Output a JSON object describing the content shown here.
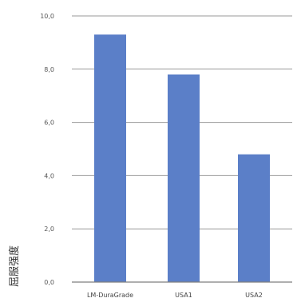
{
  "chart_data": {
    "type": "bar",
    "title": "",
    "xlabel": "",
    "ylabel": "屈服强度",
    "ylim": [
      0,
      10
    ],
    "yticks": [
      "0,0",
      "2,0",
      "4,0",
      "6,0",
      "8,0",
      "10,0"
    ],
    "grid": true,
    "categories": [
      "LM-DuraGrade",
      "USA1",
      "USA2"
    ],
    "values": [
      9.3,
      7.8,
      4.8
    ],
    "colors": {
      "bar": "#5B7FC8",
      "gridline": "#9a9a9a",
      "axis": "#7f7f7f"
    }
  }
}
